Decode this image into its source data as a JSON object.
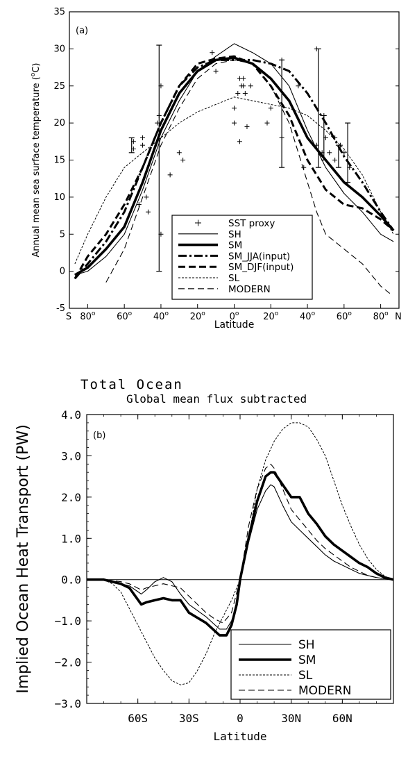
{
  "chart_data": [
    {
      "type": "line",
      "panel_label": "(a)",
      "xlabel": "Latitude",
      "ylabel": "Annual mean sea surface temperature (",
      "ylabel_unit": "C)",
      "xlim": [
        -90,
        90
      ],
      "ylim": [
        -5,
        35
      ],
      "x_ticks": [
        {
          "v": -80,
          "t": "80"
        },
        {
          "v": -60,
          "t": "60"
        },
        {
          "v": -40,
          "t": "40"
        },
        {
          "v": -20,
          "t": "20"
        },
        {
          "v": 0,
          "t": "0"
        },
        {
          "v": 20,
          "t": "20"
        },
        {
          "v": 40,
          "t": "40"
        },
        {
          "v": 60,
          "t": "60"
        },
        {
          "v": 80,
          "t": "80"
        }
      ],
      "x_left_label": "S",
      "x_right_label": "N",
      "y_ticks": [
        "-5",
        "0",
        "5",
        "10",
        "15",
        "20",
        "25",
        "30",
        "35"
      ],
      "legend_position": "bottom-center",
      "legend": [
        {
          "name": "SST proxy",
          "style": "marker"
        },
        {
          "name": "SH",
          "style": "thin"
        },
        {
          "name": "SM",
          "style": "thick"
        },
        {
          "name": "SM_JJA(input)",
          "style": "dashdot"
        },
        {
          "name": "SM_DJF(input)",
          "style": "thickdash"
        },
        {
          "name": "SL",
          "style": "dotted"
        },
        {
          "name": "MODERN",
          "style": "longdash"
        }
      ],
      "series": [
        {
          "name": "SH",
          "style": "thin",
          "x": [
            -87,
            -80,
            -70,
            -60,
            -50,
            -40,
            -30,
            -20,
            -10,
            0,
            10,
            20,
            30,
            40,
            50,
            60,
            70,
            80,
            87
          ],
          "y": [
            -0.5,
            0,
            2,
            5,
            11,
            18,
            23,
            27,
            29,
            30.7,
            29.5,
            28,
            25,
            19,
            14,
            10.5,
            8,
            5,
            4
          ]
        },
        {
          "name": "SM",
          "style": "thick",
          "x": [
            -87,
            -80,
            -70,
            -60,
            -50,
            -40,
            -30,
            -20,
            -10,
            0,
            10,
            20,
            30,
            40,
            50,
            60,
            70,
            80,
            87
          ],
          "y": [
            -0.5,
            0.5,
            3,
            6,
            12,
            19,
            24,
            27,
            28.5,
            28.8,
            28,
            26,
            23,
            18,
            15,
            12,
            10,
            7.5,
            5.5
          ]
        },
        {
          "name": "SM_JJA(input)",
          "style": "dashdot",
          "x": [
            -87,
            -80,
            -70,
            -60,
            -50,
            -40,
            -30,
            -20,
            -10,
            0,
            10,
            20,
            30,
            40,
            50,
            60,
            70,
            80,
            87
          ],
          "y": [
            -1,
            1,
            4,
            8,
            14,
            20,
            25,
            27.5,
            28.5,
            28.5,
            28.5,
            28,
            27,
            24,
            20,
            15.5,
            12,
            8,
            5.5
          ]
        },
        {
          "name": "SM_DJF(input)",
          "style": "thickdash",
          "x": [
            -87,
            -80,
            -70,
            -60,
            -50,
            -40,
            -30,
            -20,
            -10,
            0,
            10,
            20,
            30,
            40,
            50,
            60,
            70,
            80,
            87
          ],
          "y": [
            -1,
            2,
            5,
            9,
            14,
            20,
            25,
            28,
            28.7,
            29,
            28,
            25,
            21,
            15,
            11,
            9,
            8.5,
            7,
            5.5
          ]
        },
        {
          "name": "SL",
          "style": "dotted",
          "x": [
            -87,
            -80,
            -70,
            -60,
            -50,
            -40,
            -30,
            -20,
            -10,
            0,
            10,
            20,
            30,
            40,
            50,
            60,
            70,
            80,
            87
          ],
          "y": [
            1,
            5,
            10,
            14,
            16,
            18,
            20,
            21.5,
            22.5,
            23.5,
            23,
            22.5,
            22,
            21,
            19,
            16.5,
            13,
            8,
            5
          ]
        },
        {
          "name": "MODERN",
          "style": "longdash",
          "x": [
            -70,
            -60,
            -50,
            -40,
            -30,
            -20,
            -10,
            0,
            10,
            20,
            30,
            40,
            45,
            50,
            60,
            70,
            80,
            85
          ],
          "y": [
            -1.5,
            3,
            10,
            17,
            22,
            26,
            28,
            28.5,
            28,
            25,
            20,
            12,
            8,
            5,
            3,
            1,
            -2,
            -3
          ]
        }
      ],
      "proxy_points": [
        [
          -55,
          16.5
        ],
        [
          -55,
          17.5
        ],
        [
          -50,
          17
        ],
        [
          -50,
          18
        ],
        [
          -48,
          10
        ],
        [
          -47,
          8
        ],
        [
          -52,
          9
        ],
        [
          -40,
          25
        ],
        [
          -40,
          5
        ],
        [
          -41,
          21
        ],
        [
          -42,
          20
        ],
        [
          -35,
          13
        ],
        [
          -30,
          16
        ],
        [
          -28,
          15
        ],
        [
          -12,
          29.5
        ],
        [
          -10,
          27
        ],
        [
          0,
          22
        ],
        [
          0,
          20
        ],
        [
          2,
          24
        ],
        [
          3,
          26
        ],
        [
          4,
          25
        ],
        [
          5,
          26
        ],
        [
          5,
          25
        ],
        [
          6,
          24
        ],
        [
          3,
          17.5
        ],
        [
          7,
          19.5
        ],
        [
          9,
          25
        ],
        [
          18,
          20
        ],
        [
          20,
          22
        ],
        [
          26,
          28.5
        ],
        [
          26,
          18
        ],
        [
          35,
          25
        ],
        [
          38,
          14
        ],
        [
          45,
          17
        ],
        [
          45,
          30
        ],
        [
          48,
          16
        ],
        [
          49,
          21
        ],
        [
          50,
          18
        ],
        [
          52,
          16
        ],
        [
          55,
          18
        ],
        [
          55,
          15
        ],
        [
          58,
          17
        ],
        [
          60,
          16
        ],
        [
          62,
          12
        ],
        [
          63,
          14
        ]
      ],
      "error_bars": [
        {
          "x": -56,
          "low": 16,
          "high": 18
        },
        {
          "x": -41,
          "low": 0,
          "high": 30.5
        },
        {
          "x": 26,
          "low": 14,
          "high": 28.5
        },
        {
          "x": 46,
          "low": 14,
          "high": 30
        },
        {
          "x": 49,
          "low": 15,
          "high": 21
        },
        {
          "x": 57,
          "low": 14,
          "high": 17
        },
        {
          "x": 62,
          "low": 12,
          "high": 20
        }
      ]
    },
    {
      "type": "line",
      "title": "Total Ocean",
      "subtitle": "Global mean flux subtracted",
      "panel_label": "(b)",
      "xlabel": "Latitude",
      "ylabel": "Implied Ocean Heat Transport (PW)",
      "xlim": [
        -90,
        90
      ],
      "ylim": [
        -3,
        4
      ],
      "x_ticks": [
        {
          "v": -60,
          "t": "60S"
        },
        {
          "v": -30,
          "t": "30S"
        },
        {
          "v": 0,
          "t": "0"
        },
        {
          "v": 30,
          "t": "30N"
        },
        {
          "v": 60,
          "t": "60N"
        }
      ],
      "y_ticks": [
        "−3.0",
        "−2.0",
        "−1.0",
        "0.0",
        "1.0",
        "2.0",
        "3.0",
        "4.0"
      ],
      "legend_position": "bottom-right",
      "legend": [
        {
          "name": "SH",
          "style": "thin"
        },
        {
          "name": "SM",
          "style": "thick"
        },
        {
          "name": "SL",
          "style": "dotted"
        },
        {
          "name": "MODERN",
          "style": "longdash"
        }
      ],
      "series": [
        {
          "name": "SH",
          "style": "thin",
          "x": [
            -90,
            -80,
            -70,
            -65,
            -58,
            -55,
            -50,
            -45,
            -40,
            -35,
            -30,
            -20,
            -12,
            -8,
            -5,
            -2,
            0,
            5,
            10,
            15,
            18,
            20,
            25,
            30,
            35,
            40,
            45,
            50,
            55,
            60,
            65,
            70,
            75,
            80,
            85,
            90
          ],
          "y": [
            0,
            0,
            -0.1,
            -0.15,
            -0.35,
            -0.25,
            -0.05,
            0.05,
            -0.05,
            -0.35,
            -0.6,
            -0.9,
            -1.2,
            -1.2,
            -1.0,
            -0.6,
            0,
            0.9,
            1.7,
            2.15,
            2.3,
            2.25,
            1.8,
            1.4,
            1.2,
            1.0,
            0.8,
            0.6,
            0.45,
            0.35,
            0.25,
            0.15,
            0.1,
            0.05,
            0.02,
            0
          ]
        },
        {
          "name": "SM",
          "style": "thick",
          "x": [
            -90,
            -80,
            -70,
            -65,
            -58,
            -55,
            -50,
            -45,
            -40,
            -35,
            -30,
            -20,
            -12,
            -8,
            -5,
            -2,
            0,
            5,
            10,
            15,
            18,
            20,
            25,
            30,
            35,
            40,
            45,
            50,
            55,
            60,
            65,
            70,
            75,
            80,
            85,
            90
          ],
          "y": [
            0,
            0,
            -0.1,
            -0.2,
            -0.6,
            -0.55,
            -0.5,
            -0.45,
            -0.5,
            -0.5,
            -0.8,
            -1.05,
            -1.35,
            -1.35,
            -1.1,
            -0.6,
            0,
            1.0,
            1.9,
            2.5,
            2.6,
            2.6,
            2.3,
            2.0,
            2.0,
            1.6,
            1.35,
            1.05,
            0.85,
            0.7,
            0.55,
            0.4,
            0.3,
            0.15,
            0.05,
            0
          ]
        },
        {
          "name": "SL",
          "style": "dotted",
          "x": [
            -90,
            -80,
            -75,
            -70,
            -65,
            -60,
            -55,
            -50,
            -45,
            -40,
            -35,
            -30,
            -25,
            -20,
            -15,
            -10,
            -5,
            0,
            5,
            10,
            15,
            20,
            25,
            30,
            35,
            40,
            45,
            50,
            55,
            60,
            65,
            70,
            75,
            80,
            85,
            90
          ],
          "y": [
            0,
            0,
            -0.1,
            -0.3,
            -0.7,
            -1.1,
            -1.5,
            -1.9,
            -2.2,
            -2.45,
            -2.55,
            -2.5,
            -2.2,
            -1.8,
            -1.3,
            -0.9,
            -0.5,
            0,
            1.0,
            2.2,
            2.9,
            3.35,
            3.65,
            3.8,
            3.8,
            3.7,
            3.4,
            3.0,
            2.4,
            1.8,
            1.3,
            0.85,
            0.5,
            0.25,
            0.08,
            0
          ]
        },
        {
          "name": "MODERN",
          "style": "longdash",
          "x": [
            -90,
            -80,
            -70,
            -65,
            -58,
            -55,
            -50,
            -45,
            -40,
            -35,
            -30,
            -25,
            -20,
            -15,
            -10,
            -5,
            0,
            5,
            10,
            15,
            18,
            20,
            25,
            30,
            35,
            40,
            45,
            50,
            55,
            60,
            65,
            70,
            75,
            80,
            85,
            90
          ],
          "y": [
            0,
            0,
            -0.05,
            -0.1,
            -0.25,
            -0.2,
            -0.15,
            -0.1,
            -0.15,
            -0.2,
            -0.4,
            -0.6,
            -0.8,
            -0.95,
            -1.05,
            -0.8,
            0,
            1.3,
            2.2,
            2.7,
            2.8,
            2.7,
            2.2,
            1.7,
            1.45,
            1.2,
            0.95,
            0.75,
            0.6,
            0.45,
            0.3,
            0.2,
            0.1,
            0.05,
            0.02,
            0
          ]
        }
      ]
    }
  ]
}
